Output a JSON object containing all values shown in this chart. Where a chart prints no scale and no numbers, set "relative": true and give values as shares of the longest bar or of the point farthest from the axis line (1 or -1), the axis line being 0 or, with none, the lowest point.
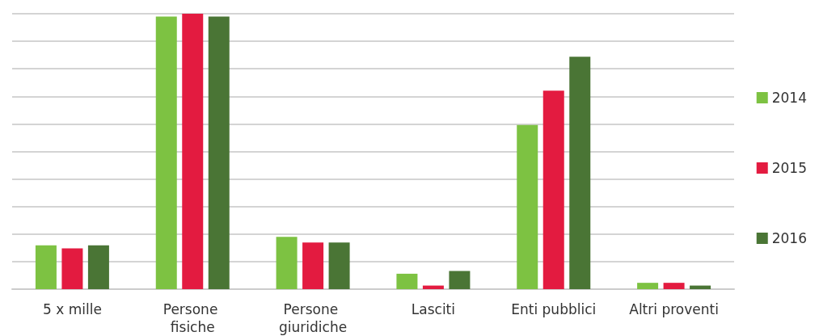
{
  "chart_data": {
    "type": "bar",
    "relative": true,
    "grid": "y",
    "legend": "right",
    "categories": [
      "5 x mille",
      "Persone fisiche",
      "Persone giuridiche",
      "Lasciti",
      "Enti pubblici",
      "Altri proventi"
    ],
    "series": [
      {
        "name": "2014",
        "color": "#7dc242",
        "values": [
          0.159,
          0.99,
          0.19,
          0.056,
          0.596,
          0.023
        ]
      },
      {
        "name": "2015",
        "color": "#e31b40",
        "values": [
          0.148,
          1,
          0.169,
          0.013,
          0.721,
          0.023
        ]
      },
      {
        "name": "2016",
        "color": "#4a7535",
        "values": [
          0.159,
          0.99,
          0.169,
          0.066,
          0.844,
          0.013
        ]
      }
    ]
  }
}
